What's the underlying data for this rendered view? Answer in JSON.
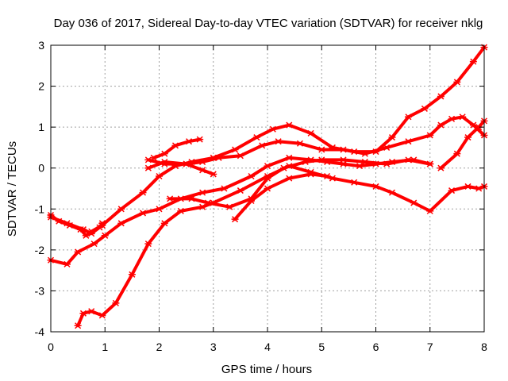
{
  "chart_data": {
    "type": "line",
    "title": "Day 036 of 2017, Sidereal Day-to-day VTEC variation (SDTVAR) for receiver nklg",
    "xlabel": "GPS time / hours",
    "ylabel": "SDTVAR / TECUs",
    "xlim": [
      0,
      8
    ],
    "ylim": [
      -4,
      3
    ],
    "xticks": [
      "0",
      "1",
      "2",
      "3",
      "4",
      "5",
      "6",
      "7",
      "8"
    ],
    "yticks": [
      "-4",
      "-3",
      "-2",
      "-1",
      "0",
      "1",
      "2",
      "3"
    ],
    "grid": true,
    "marker": "cross",
    "color": "#ff0000",
    "series": [
      {
        "x": [
          0.0,
          0.15,
          0.35,
          0.55,
          0.65,
          0.75,
          0.95,
          1.3,
          1.7,
          2.0,
          2.3,
          2.6,
          3.0,
          3.4,
          3.8,
          4.1,
          4.4,
          4.8,
          5.2,
          5.6,
          6.0,
          6.3,
          6.6,
          6.9,
          7.2,
          7.5,
          7.8,
          8.0
        ],
        "y": [
          -1.15,
          -1.3,
          -1.4,
          -1.5,
          -1.65,
          -1.55,
          -1.4,
          -1.0,
          -0.6,
          -0.2,
          0.05,
          0.15,
          0.25,
          0.45,
          0.75,
          0.95,
          1.05,
          0.85,
          0.5,
          0.4,
          0.4,
          0.75,
          1.25,
          1.45,
          1.75,
          2.1,
          2.6,
          2.95
        ]
      },
      {
        "x": [
          0.0,
          0.3,
          0.5,
          0.8,
          1.0,
          1.3,
          1.7,
          2.0,
          2.4,
          2.8,
          3.2,
          3.7,
          4.0,
          4.4,
          4.8,
          5.1,
          5.4,
          5.7,
          6.0,
          6.3,
          6.7,
          7.0
        ],
        "y": [
          -2.25,
          -2.35,
          -2.05,
          -1.85,
          -1.65,
          -1.35,
          -1.1,
          -1.0,
          -0.75,
          -0.6,
          -0.5,
          -0.2,
          0.05,
          0.25,
          0.2,
          0.15,
          0.1,
          0.05,
          0.1,
          0.15,
          0.2,
          0.1
        ]
      },
      {
        "x": [
          0.5,
          0.6,
          0.75,
          0.95,
          1.2,
          1.5,
          1.8,
          2.1,
          2.4,
          2.8,
          3.0,
          3.5,
          4.0,
          4.4,
          4.8,
          5.2,
          5.6,
          6.0,
          6.3,
          6.7,
          7.0,
          7.4,
          7.7,
          7.9,
          8.0
        ],
        "y": [
          -3.85,
          -3.55,
          -3.5,
          -3.6,
          -3.3,
          -2.6,
          -1.85,
          -1.35,
          -1.05,
          -0.95,
          -0.85,
          -0.55,
          -0.2,
          0.05,
          -0.1,
          -0.25,
          -0.35,
          -0.45,
          -0.6,
          -0.85,
          -1.05,
          -0.55,
          -0.45,
          -0.5,
          -0.45
        ]
      },
      {
        "x": [
          0.0,
          0.3,
          0.6,
          0.75,
          0.9,
          0.95
        ],
        "y": [
          -1.2,
          -1.35,
          -1.5,
          -1.6,
          -1.45,
          -1.35
        ]
      },
      {
        "x": [
          1.9,
          2.1,
          2.3,
          2.55,
          2.75
        ],
        "y": [
          0.25,
          0.35,
          0.55,
          0.65,
          0.7
        ]
      },
      {
        "x": [
          1.8,
          2.1,
          2.5,
          2.8,
          3.1,
          3.5,
          3.9,
          4.2,
          4.6,
          5.0,
          5.4,
          5.8,
          6.2,
          6.6,
          7.0,
          7.2,
          7.4,
          7.6,
          7.8,
          8.0
        ],
        "y": [
          0.0,
          0.15,
          0.1,
          0.15,
          0.25,
          0.3,
          0.55,
          0.65,
          0.6,
          0.45,
          0.45,
          0.35,
          0.5,
          0.65,
          0.8,
          1.05,
          1.2,
          1.25,
          1.05,
          0.8
        ]
      },
      {
        "x": [
          1.8,
          2.1,
          2.5,
          2.8,
          3.0
        ],
        "y": [
          0.2,
          0.1,
          0.1,
          -0.05,
          -0.15
        ]
      },
      {
        "x": [
          2.2,
          2.6,
          2.9,
          3.3,
          3.7,
          4.0,
          4.3,
          4.7,
          5.0,
          5.4,
          5.8,
          6.2,
          6.6,
          7.0
        ],
        "y": [
          -0.75,
          -0.75,
          -0.85,
          -0.95,
          -0.75,
          -0.25,
          0.0,
          0.15,
          0.2,
          0.2,
          0.15,
          0.1,
          0.2,
          0.1
        ]
      },
      {
        "x": [
          3.4,
          3.7,
          4.0,
          4.4,
          4.8,
          5.1
        ],
        "y": [
          -1.25,
          -0.8,
          -0.5,
          -0.25,
          -0.15,
          -0.2
        ]
      },
      {
        "x": [
          7.2,
          7.5,
          7.7,
          7.9,
          8.0
        ],
        "y": [
          0.0,
          0.35,
          0.75,
          1.0,
          1.15
        ]
      }
    ]
  }
}
